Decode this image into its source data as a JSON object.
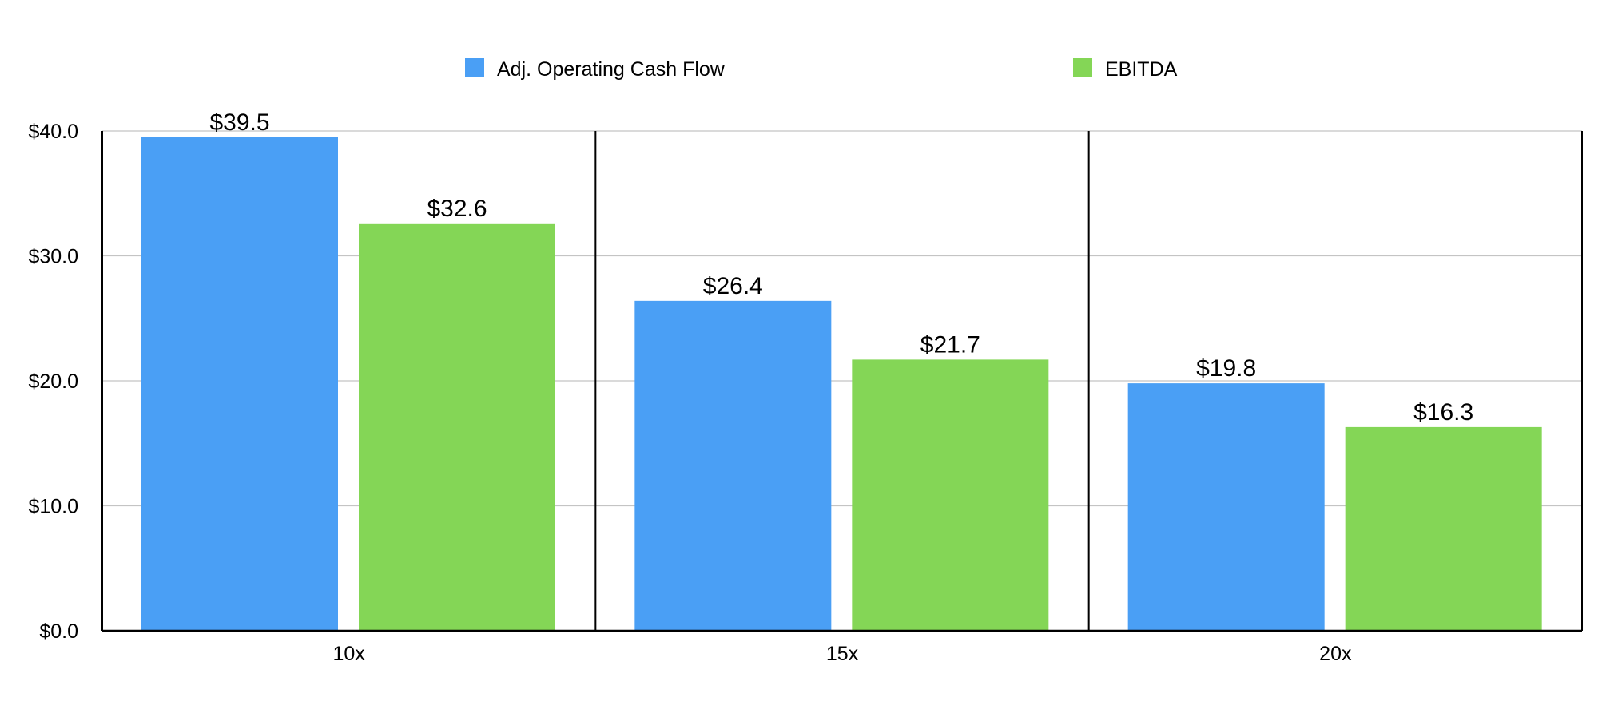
{
  "chart_data": {
    "type": "bar",
    "title": "",
    "xlabel": "",
    "ylabel": "",
    "categories": [
      "10x",
      "15x",
      "20x"
    ],
    "series": [
      {
        "name": "Adj. Operating Cash Flow",
        "color": "#4a9ff5",
        "values": [
          39.5,
          26.4,
          19.8
        ],
        "value_labels": [
          "$39.5",
          "$26.4",
          "$19.8"
        ]
      },
      {
        "name": "EBITDA",
        "color": "#84d656",
        "values": [
          32.6,
          21.7,
          16.3
        ],
        "value_labels": [
          "$32.6",
          "$21.7",
          "$16.3"
        ]
      }
    ],
    "ylim": [
      0,
      40
    ],
    "yticks": [
      0,
      10,
      20,
      30,
      40
    ],
    "ytick_labels": [
      "$0.0",
      "$10.0",
      "$20.0",
      "$30.0",
      "$40.0"
    ],
    "grid": true,
    "legend_position": "top-center"
  }
}
